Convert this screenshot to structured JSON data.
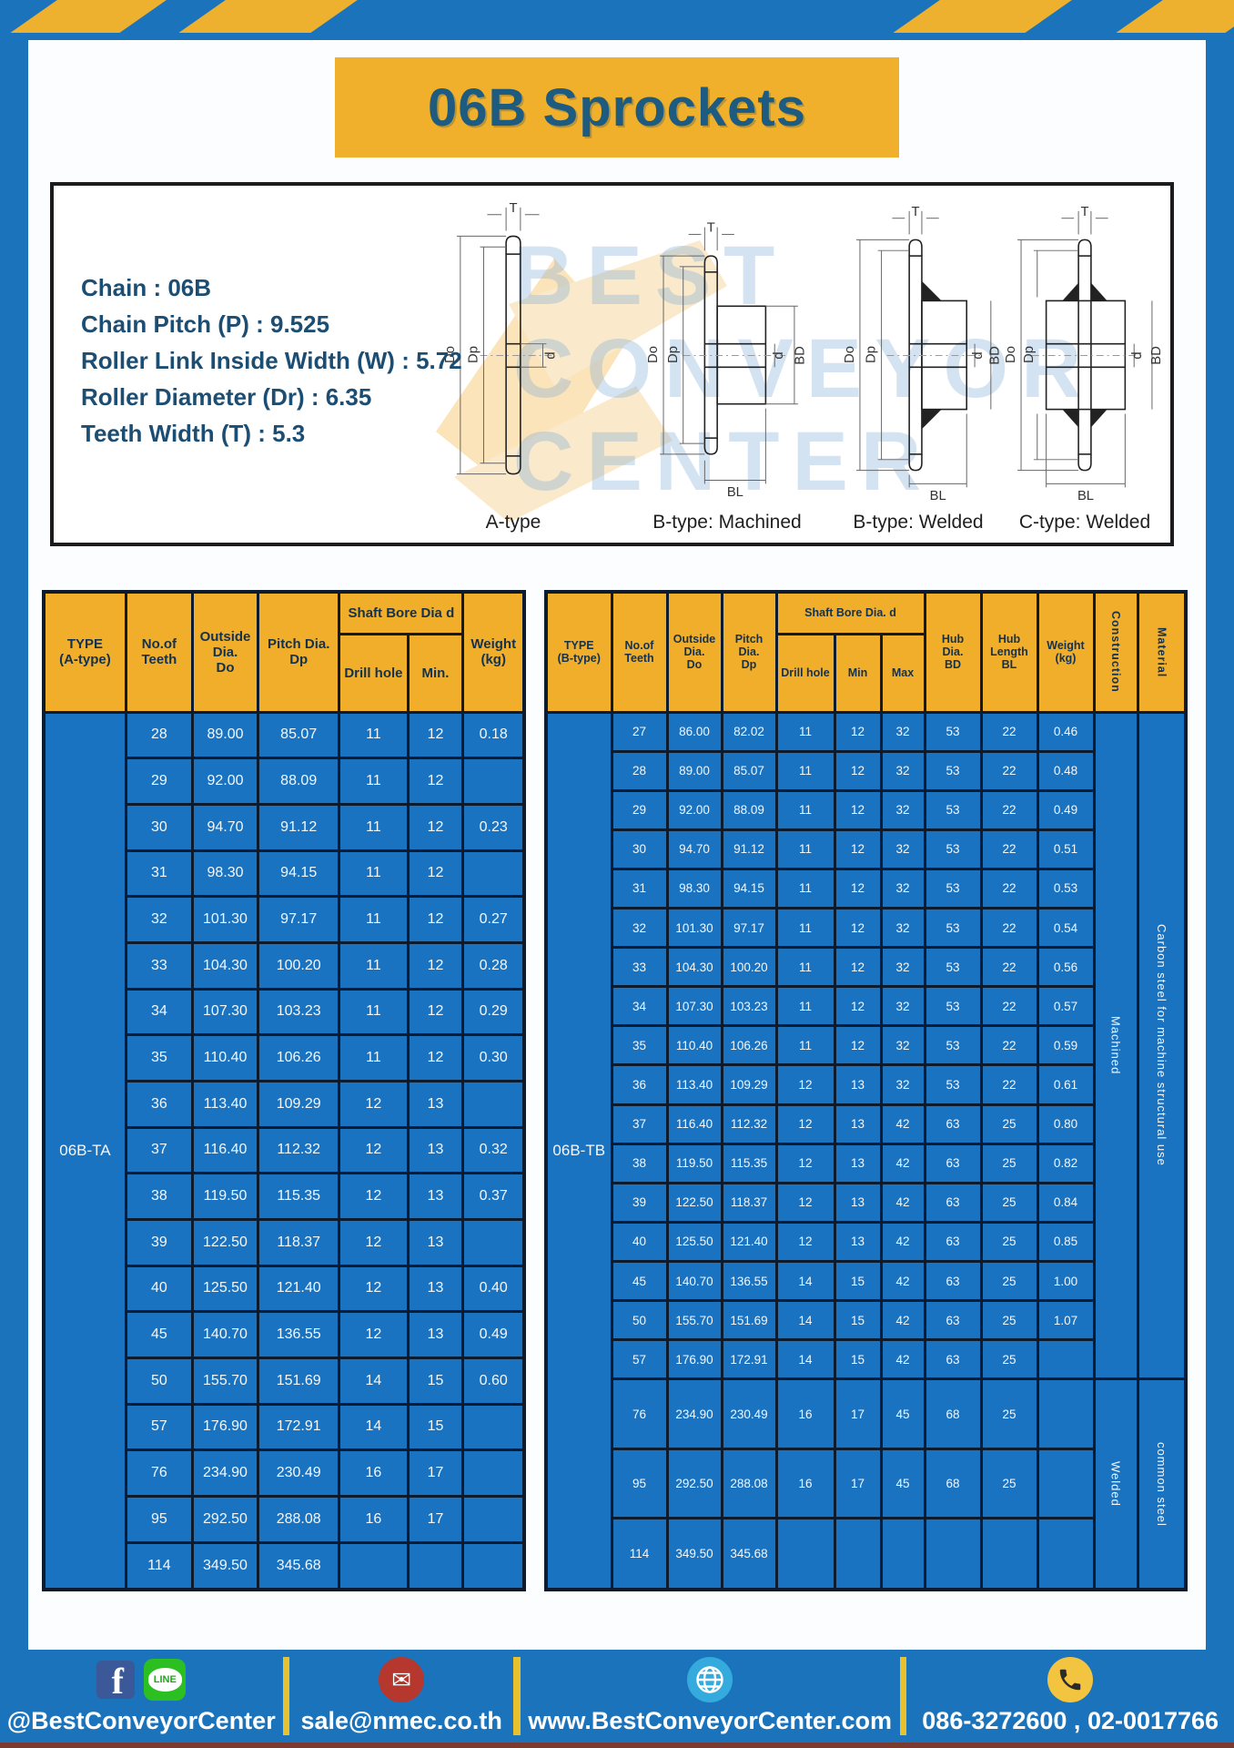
{
  "page": {
    "title": "06B Sprockets"
  },
  "colors": {
    "page_blue": "#1b74bb",
    "accent_yellow": "#f0b02c",
    "table_header_yellow": "#f0ae2a",
    "table_body_blue": "#1a73c0",
    "table_border_navy": "#0c1c2e",
    "title_text_blue": "#1e5b80"
  },
  "specs": {
    "lines": [
      "Chain  : 06B",
      "Chain Pitch (P)  :  9.525",
      "Roller Link Inside Width (W)  :  5.72",
      "Roller Diameter (Dr)  : 6.35",
      "Teeth Width (T)  :  5.3"
    ]
  },
  "diagrams": {
    "labels": [
      "A-type",
      "B-type: Machined",
      "B-type: Welded",
      "C-type: Welded"
    ],
    "dims": {
      "t": "T",
      "outer": "Do",
      "pitch": "Dp",
      "bore": "d",
      "hub": "BD",
      "hub_len": "BL"
    },
    "watermark": "BEST\nCONVEYOR\nCENTER"
  },
  "table_a": {
    "header": {
      "type": "TYPE\n(A-type)",
      "teeth": "No.of\nTeeth",
      "outside": "Outside\nDia.\nDo",
      "pitch": "Pitch Dia.\nDp",
      "shaft_bore": "Shaft Bore Dia d",
      "drill": "Drill hole",
      "min": "Min.",
      "weight": "Weight\n(kg)"
    },
    "type_label": "06B-TA",
    "rows": [
      [
        "28",
        "89.00",
        "85.07",
        "11",
        "12",
        "0.18"
      ],
      [
        "29",
        "92.00",
        "88.09",
        "11",
        "12",
        ""
      ],
      [
        "30",
        "94.70",
        "91.12",
        "11",
        "12",
        "0.23"
      ],
      [
        "31",
        "98.30",
        "94.15",
        "11",
        "12",
        ""
      ],
      [
        "32",
        "101.30",
        "97.17",
        "11",
        "12",
        "0.27"
      ],
      [
        "33",
        "104.30",
        "100.20",
        "11",
        "12",
        "0.28"
      ],
      [
        "34",
        "107.30",
        "103.23",
        "11",
        "12",
        "0.29"
      ],
      [
        "35",
        "110.40",
        "106.26",
        "11",
        "12",
        "0.30"
      ],
      [
        "36",
        "113.40",
        "109.29",
        "12",
        "13",
        ""
      ],
      [
        "37",
        "116.40",
        "112.32",
        "12",
        "13",
        "0.32"
      ],
      [
        "38",
        "119.50",
        "115.35",
        "12",
        "13",
        "0.37"
      ],
      [
        "39",
        "122.50",
        "118.37",
        "12",
        "13",
        ""
      ],
      [
        "40",
        "125.50",
        "121.40",
        "12",
        "13",
        "0.40"
      ],
      [
        "45",
        "140.70",
        "136.55",
        "12",
        "13",
        "0.49"
      ],
      [
        "50",
        "155.70",
        "151.69",
        "14",
        "15",
        "0.60"
      ],
      [
        "57",
        "176.90",
        "172.91",
        "14",
        "15",
        ""
      ],
      [
        "76",
        "234.90",
        "230.49",
        "16",
        "17",
        ""
      ],
      [
        "95",
        "292.50",
        "288.08",
        "16",
        "17",
        ""
      ],
      [
        "114",
        "349.50",
        "345.68",
        "",
        "",
        ""
      ]
    ]
  },
  "table_b": {
    "header": {
      "type": "TYPE\n(B-type)",
      "teeth": "No.of\nTeeth",
      "outside": "Outside\nDia.\nDo",
      "pitch": "Pitch\nDia.\nDp",
      "shaft_bore": "Shaft Bore Dia. d",
      "drill": "Drill hole",
      "min": "Min",
      "max": "Max",
      "hub_dia": "Hub\nDia.\nBD",
      "hub_len": "Hub\nLength\nBL",
      "weight": "Weight\n(kg)",
      "construction": "Construction",
      "material": "Material"
    },
    "type_label": "06B-TB",
    "rows": [
      [
        "27",
        "86.00",
        "82.02",
        "11",
        "12",
        "32",
        "53",
        "22",
        "0.46"
      ],
      [
        "28",
        "89.00",
        "85.07",
        "11",
        "12",
        "32",
        "53",
        "22",
        "0.48"
      ],
      [
        "29",
        "92.00",
        "88.09",
        "11",
        "12",
        "32",
        "53",
        "22",
        "0.49"
      ],
      [
        "30",
        "94.70",
        "91.12",
        "11",
        "12",
        "32",
        "53",
        "22",
        "0.51"
      ],
      [
        "31",
        "98.30",
        "94.15",
        "11",
        "12",
        "32",
        "53",
        "22",
        "0.53"
      ],
      [
        "32",
        "101.30",
        "97.17",
        "11",
        "12",
        "32",
        "53",
        "22",
        "0.54"
      ],
      [
        "33",
        "104.30",
        "100.20",
        "11",
        "12",
        "32",
        "53",
        "22",
        "0.56"
      ],
      [
        "34",
        "107.30",
        "103.23",
        "11",
        "12",
        "32",
        "53",
        "22",
        "0.57"
      ],
      [
        "35",
        "110.40",
        "106.26",
        "11",
        "12",
        "32",
        "53",
        "22",
        "0.59"
      ],
      [
        "36",
        "113.40",
        "109.29",
        "12",
        "13",
        "32",
        "53",
        "22",
        "0.61"
      ],
      [
        "37",
        "116.40",
        "112.32",
        "12",
        "13",
        "42",
        "63",
        "25",
        "0.80"
      ],
      [
        "38",
        "119.50",
        "115.35",
        "12",
        "13",
        "42",
        "63",
        "25",
        "0.82"
      ],
      [
        "39",
        "122.50",
        "118.37",
        "12",
        "13",
        "42",
        "63",
        "25",
        "0.84"
      ],
      [
        "40",
        "125.50",
        "121.40",
        "12",
        "13",
        "42",
        "63",
        "25",
        "0.85"
      ],
      [
        "45",
        "140.70",
        "136.55",
        "14",
        "15",
        "42",
        "63",
        "25",
        "1.00"
      ],
      [
        "50",
        "155.70",
        "151.69",
        "14",
        "15",
        "42",
        "63",
        "25",
        "1.07"
      ],
      [
        "57",
        "176.90",
        "172.91",
        "14",
        "15",
        "42",
        "63",
        "25",
        ""
      ],
      [
        "76",
        "234.90",
        "230.49",
        "16",
        "17",
        "45",
        "68",
        "25",
        ""
      ],
      [
        "95",
        "292.50",
        "288.08",
        "16",
        "17",
        "45",
        "68",
        "25",
        ""
      ],
      [
        "114",
        "349.50",
        "345.68",
        "",
        "",
        "",
        "",
        "",
        ""
      ]
    ],
    "construction": [
      {
        "label": "Machined",
        "rows": 17
      },
      {
        "label": "Welded",
        "rows": 3
      }
    ],
    "material": [
      {
        "label": "Carbon steel for machine structural use",
        "rows": 17
      },
      {
        "label": "common steel",
        "rows": 3
      }
    ]
  },
  "footer": {
    "items": [
      {
        "icons": [
          "facebook-icon",
          "line-icon"
        ],
        "text": "@BestConveyorCenter"
      },
      {
        "icons": [
          "email-icon"
        ],
        "text": "sale@nmec.co.th"
      },
      {
        "icons": [
          "globe-icon"
        ],
        "text": "www.BestConveyorCenter.com"
      },
      {
        "icons": [
          "phone-icon"
        ],
        "text": "086-3272600 , 02-0017766"
      }
    ],
    "line_badge_text": "LINE",
    "facebook_letter": "f",
    "mail_glyph": "✉"
  }
}
